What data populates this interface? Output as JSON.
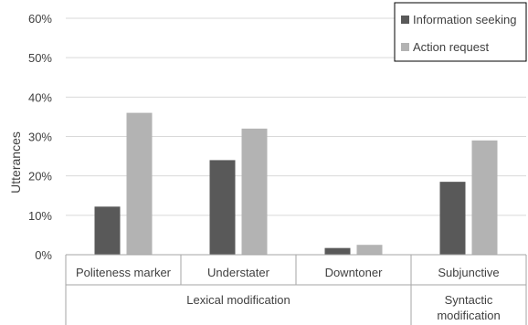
{
  "chart_data": {
    "type": "bar",
    "ylabel": "Utterances",
    "xlabel": "",
    "ylim": [
      0,
      60
    ],
    "yticks": [
      "0%",
      "10%",
      "20%",
      "30%",
      "40%",
      "50%",
      "60%"
    ],
    "categories": [
      "Politeness marker",
      "Understater",
      "Downtoner",
      "Subjunctive"
    ],
    "groups": [
      {
        "label": "Lexical modification",
        "categories": [
          "Politeness marker",
          "Understater",
          "Downtoner"
        ]
      },
      {
        "label": "Syntactic modification",
        "label_lines": [
          "Syntactic",
          "modification"
        ],
        "categories": [
          "Subjunctive"
        ]
      }
    ],
    "series": [
      {
        "name": "Information seeking",
        "color": "#595959",
        "values": [
          12.2,
          24,
          1.7,
          18.5
        ]
      },
      {
        "name": "Action request",
        "color": "#b3b3b3",
        "values": [
          36,
          32,
          2.5,
          29
        ]
      }
    ],
    "legend": "top-right",
    "grid": true
  }
}
